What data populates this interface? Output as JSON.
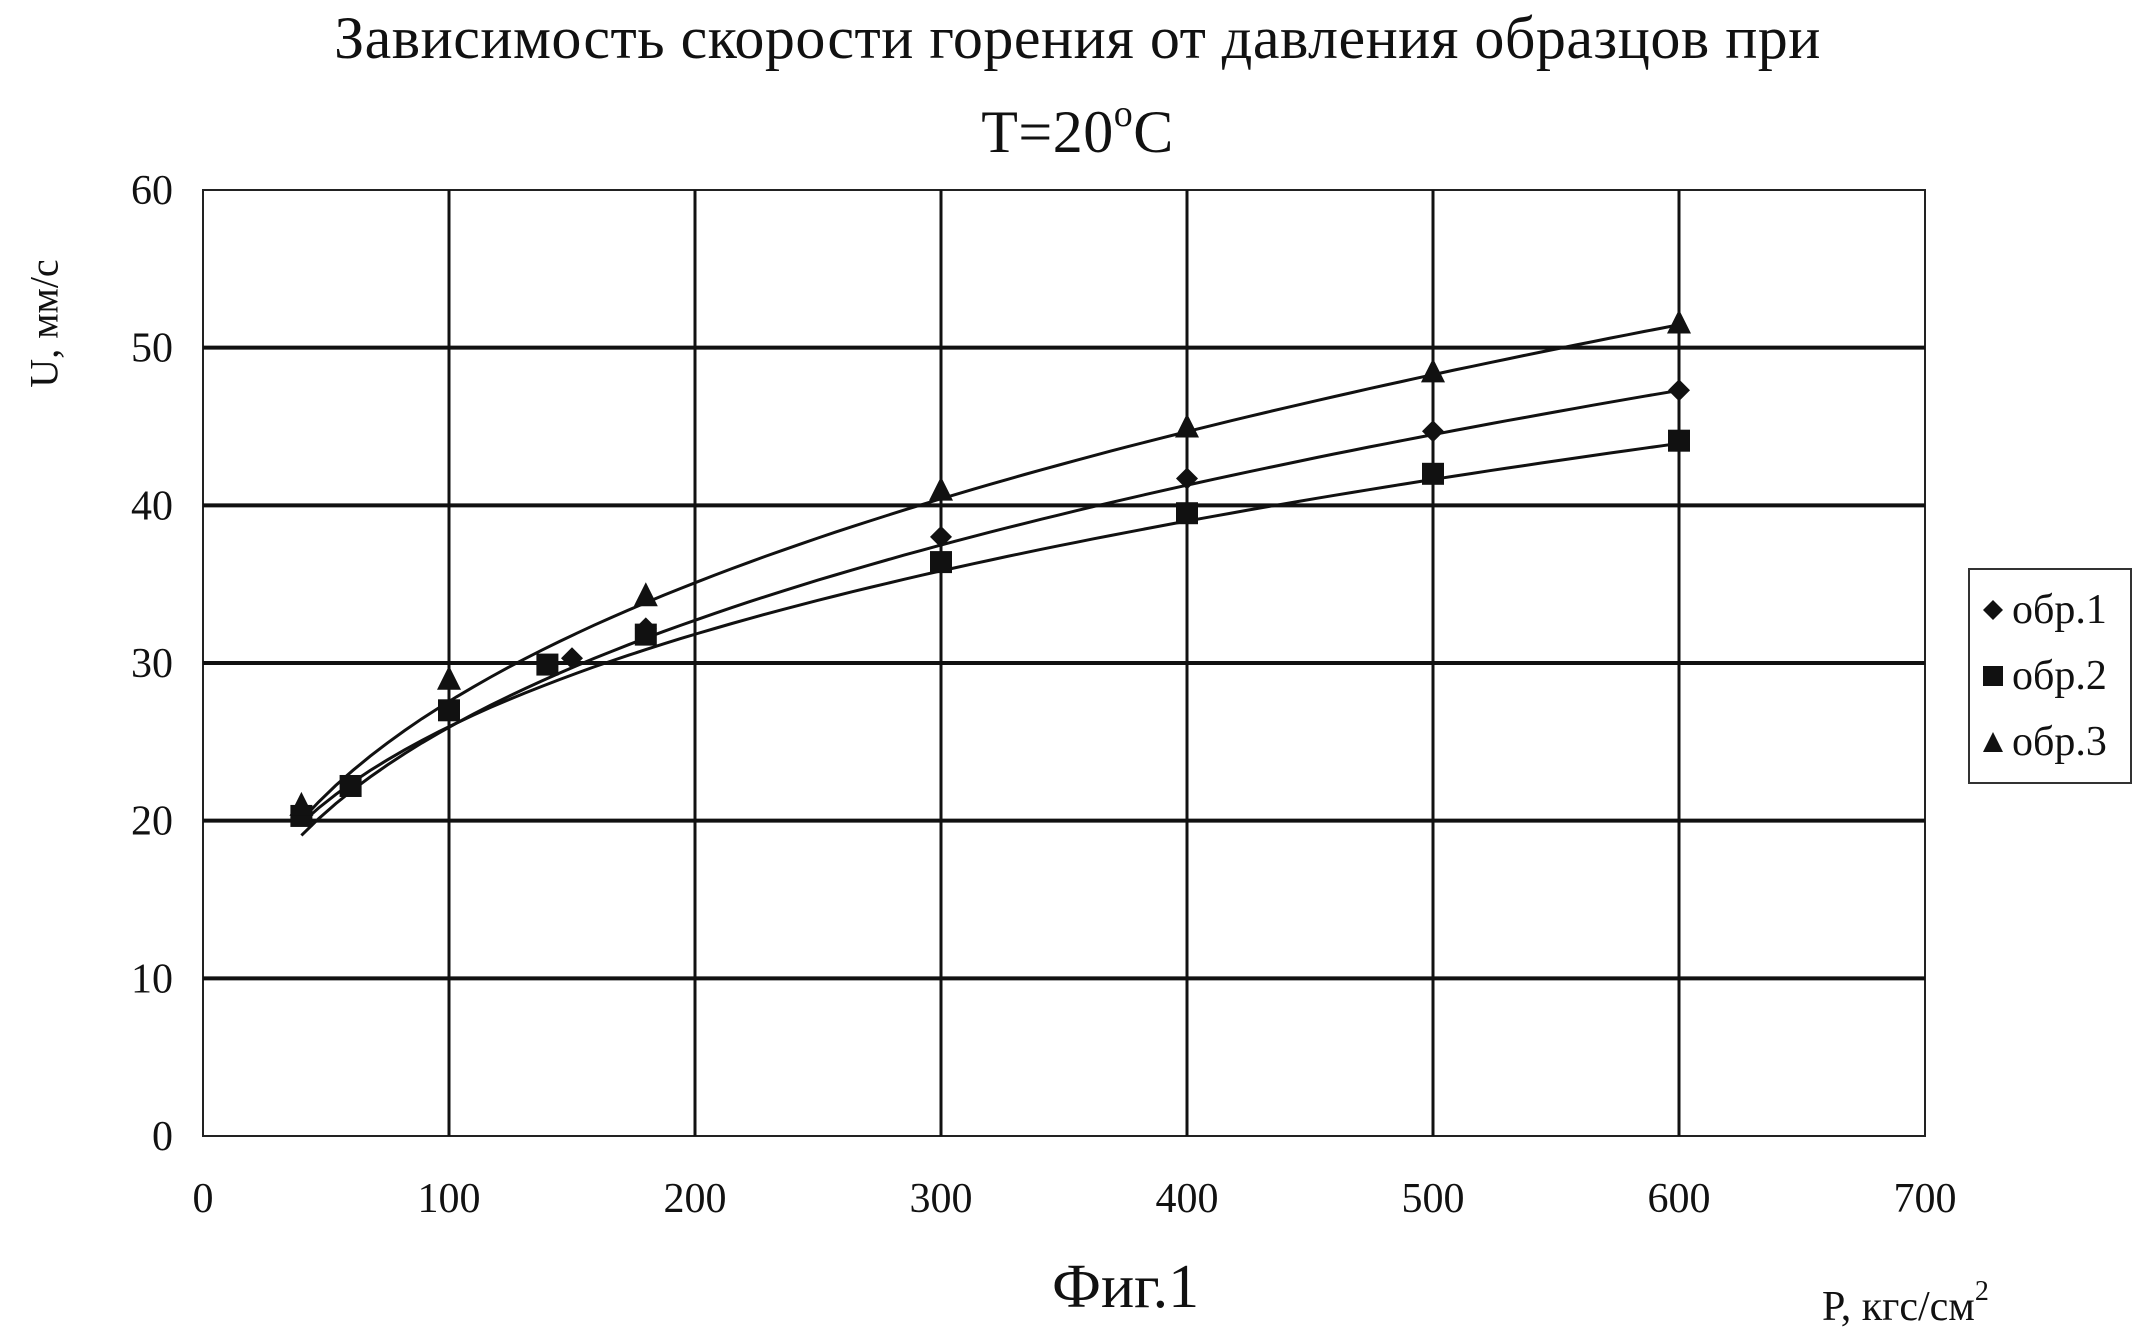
{
  "chart_data": {
    "type": "scatter",
    "title_line1": "Зависимость скорости горения от давления образцов при",
    "title_line2_base": "T=20",
    "title_line2_sup": "o",
    "title_line2_tail": "C",
    "ylabel": "U, мм/с",
    "xlabel_base": "P, кгс/см",
    "xlabel_sup": "2",
    "figure_caption": "Фиг.1",
    "xlim": [
      0,
      700
    ],
    "ylim": [
      0,
      60
    ],
    "x_ticks": [
      0,
      100,
      200,
      300,
      400,
      500,
      600,
      700
    ],
    "y_ticks": [
      0,
      10,
      20,
      30,
      40,
      50,
      60
    ],
    "grid": true,
    "legend_position": "right",
    "series": [
      {
        "name": "обр.1",
        "marker": "diamond",
        "x": [
          40,
          100,
          150,
          180,
          300,
          400,
          500,
          600
        ],
        "y": [
          20.5,
          27.0,
          30.3,
          32.2,
          38.0,
          41.7,
          44.7,
          47.3
        ],
        "trend_coef": [
          5.53,
          0.3355
        ]
      },
      {
        "name": "обр.2",
        "marker": "square",
        "x": [
          40,
          60,
          100,
          140,
          180,
          300,
          400,
          500,
          600
        ],
        "y": [
          20.3,
          22.2,
          27.0,
          29.9,
          31.8,
          36.4,
          39.5,
          42.0,
          44.1
        ],
        "trend_coef": [
          6.72,
          0.2935
        ]
      },
      {
        "name": "обр.3",
        "marker": "triangle",
        "x": [
          40,
          100,
          180,
          300,
          400,
          500,
          600
        ],
        "y": [
          21.0,
          29.0,
          34.3,
          41.0,
          45.0,
          48.5,
          51.6
        ],
        "trend_coef": [
          5.54,
          0.3484
        ]
      }
    ]
  }
}
